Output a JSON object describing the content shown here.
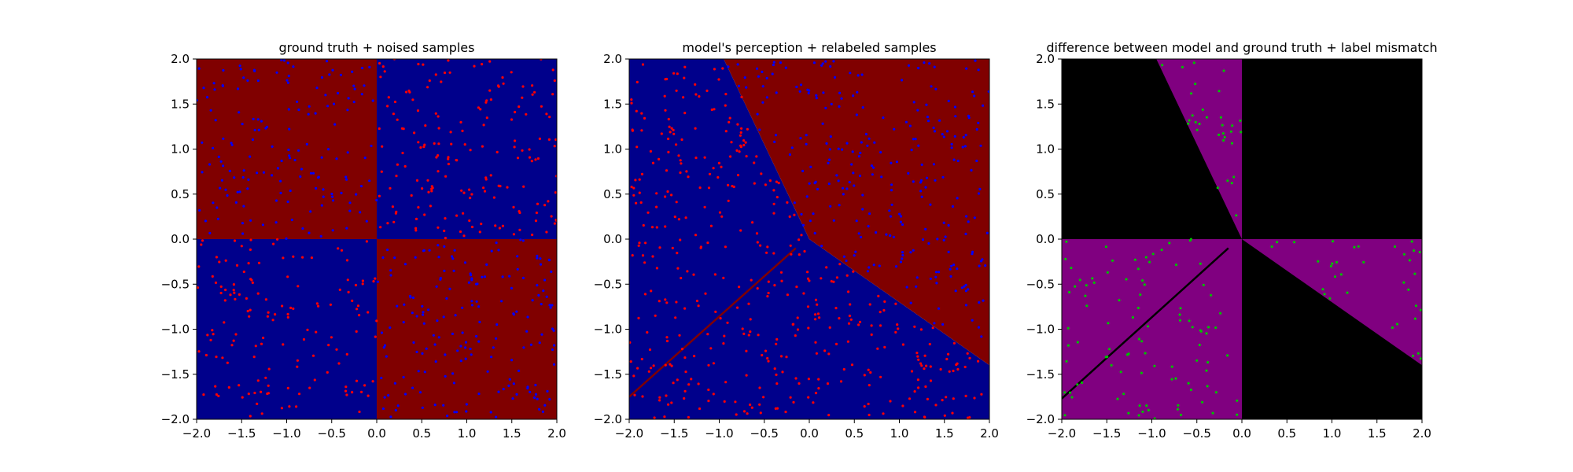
{
  "colors": {
    "red": "#800000",
    "blue": "#00008b",
    "black": "#000000",
    "purple": "#800080",
    "sample_red": "#ff0000",
    "sample_blue": "#0000ff",
    "sample_green": "#00c000"
  },
  "chart_data": [
    {
      "type": "scatter",
      "title": "ground truth + noised samples",
      "xlabel": "",
      "ylabel": "",
      "xlim": [
        -2.0,
        2.0
      ],
      "ylim": [
        -2.0,
        2.0
      ],
      "xticks": [
        "−2.0",
        "−1.5",
        "−1.0",
        "−0.5",
        "0.0",
        "0.5",
        "1.0",
        "1.5",
        "2.0"
      ],
      "yticks": [
        "2.0",
        "1.5",
        "1.0",
        "0.5",
        "0.0",
        "−0.5",
        "−1.0",
        "−1.5",
        "−2.0"
      ],
      "grid": false,
      "background_regions": [
        {
          "polygon": [
            [
              -2,
              0
            ],
            [
              0,
              0
            ],
            [
              0,
              2
            ],
            [
              -2,
              2
            ]
          ],
          "color": "red"
        },
        {
          "polygon": [
            [
              0,
              0
            ],
            [
              2,
              0
            ],
            [
              2,
              2
            ],
            [
              0,
              2
            ]
          ],
          "color": "blue"
        },
        {
          "polygon": [
            [
              -2,
              -2
            ],
            [
              0,
              -2
            ],
            [
              0,
              0
            ],
            [
              -2,
              0
            ]
          ],
          "color": "blue"
        },
        {
          "polygon": [
            [
              0,
              -2
            ],
            [
              2,
              -2
            ],
            [
              2,
              0
            ],
            [
              0,
              0
            ]
          ],
          "color": "red"
        }
      ],
      "samples_description": "about 1000 uniformly scattered samples; red points dominate the blue regions and blue points dominate the red regions"
    },
    {
      "type": "scatter",
      "title": "model's perception + relabeled samples",
      "xlabel": "",
      "ylabel": "",
      "xlim": [
        -2.0,
        2.0
      ],
      "ylim": [
        -2.0,
        2.0
      ],
      "xticks": [
        "−2.0",
        "−1.5",
        "−1.0",
        "−0.5",
        "0.0",
        "0.5",
        "1.0",
        "1.5",
        "2.0"
      ],
      "yticks": [
        "2.0",
        "1.5",
        "1.0",
        "0.5",
        "0.0",
        "−0.5",
        "−1.0",
        "−1.5",
        "−2.0"
      ],
      "grid": false,
      "background_regions": [
        {
          "polygon": [
            [
              -2,
              -2
            ],
            [
              2,
              -2
            ],
            [
              2,
              -1.4
            ],
            [
              0,
              0
            ],
            [
              -0.95,
              2
            ],
            [
              -2,
              2
            ]
          ],
          "color": "blue"
        },
        {
          "polygon": [
            [
              -0.95,
              2
            ],
            [
              2,
              2
            ],
            [
              2,
              -1.4
            ],
            [
              0,
              0
            ]
          ],
          "color": "red"
        }
      ],
      "line": {
        "points": [
          [
            -2,
            -1.75
          ],
          [
            -0.15,
            -0.1
          ]
        ],
        "color": "red"
      },
      "samples_description": "about 1000 samples; red points in the blue region, blue points in the red region"
    },
    {
      "type": "scatter",
      "title": "difference between model and ground truth + label mismatch",
      "xlabel": "",
      "ylabel": "",
      "xlim": [
        -2.0,
        2.0
      ],
      "ylim": [
        -2.0,
        2.0
      ],
      "xticks": [
        "−2.0",
        "−1.5",
        "−1.0",
        "−0.5",
        "0.0",
        "0.5",
        "1.0",
        "1.5",
        "2.0"
      ],
      "yticks": [
        "2.0",
        "1.5",
        "1.0",
        "0.5",
        "0.0",
        "−0.5",
        "−1.0",
        "−1.5",
        "−2.0"
      ],
      "grid": false,
      "background_regions": [
        {
          "polygon": [
            [
              -2,
              -2
            ],
            [
              2,
              -2
            ],
            [
              2,
              2
            ],
            [
              -2,
              2
            ]
          ],
          "color": "black"
        },
        {
          "polygon": [
            [
              0,
              0
            ],
            [
              -0.95,
              2
            ],
            [
              0,
              2
            ]
          ],
          "color": "purple"
        },
        {
          "polygon": [
            [
              -2,
              -2
            ],
            [
              0,
              -2
            ],
            [
              0,
              0
            ],
            [
              -2,
              0
            ]
          ],
          "color": "purple"
        },
        {
          "polygon": [
            [
              0,
              0
            ],
            [
              2,
              0
            ],
            [
              2,
              -1.4
            ]
          ],
          "color": "purple"
        }
      ],
      "line": {
        "points": [
          [
            -2,
            -1.77
          ],
          [
            -0.15,
            -0.1
          ]
        ],
        "color": "black"
      },
      "samples_description": "green mismatch points only in the black regions"
    }
  ]
}
